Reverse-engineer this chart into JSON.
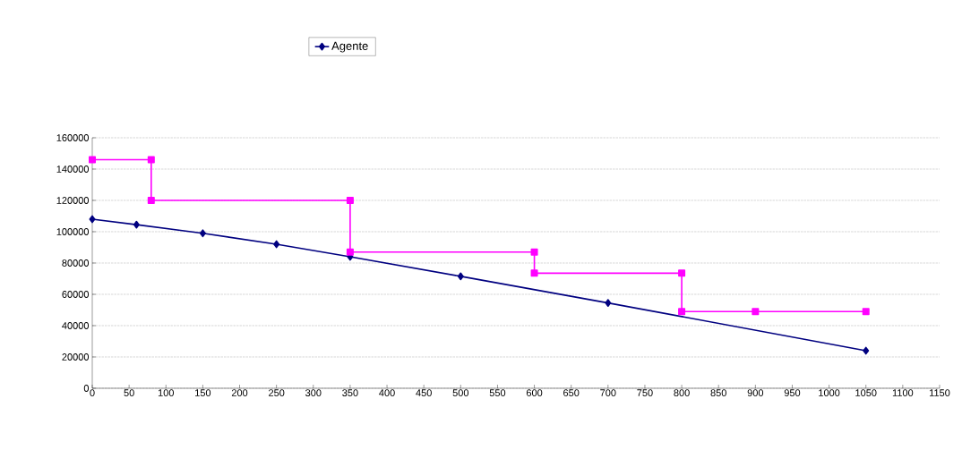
{
  "chart_data": {
    "type": "line",
    "series": [
      {
        "name": "Agente",
        "color": "#000080",
        "marker": "diamond",
        "x": [
          0,
          60,
          150,
          250,
          350,
          500,
          700,
          1050
        ],
        "values": [
          108000,
          104500,
          99000,
          92000,
          84000,
          71500,
          54500,
          24000
        ]
      },
      {
        "color": "#ff00ff",
        "marker": "square",
        "x": [
          0,
          80,
          80,
          350,
          350,
          600,
          600,
          800,
          800,
          900,
          1050
        ],
        "values": [
          146000,
          146000,
          120000,
          120000,
          87000,
          87000,
          73500,
          73500,
          49000,
          49000,
          49000
        ]
      }
    ],
    "xlim": [
      0,
      1150
    ],
    "xticks": [
      0,
      50,
      100,
      150,
      200,
      250,
      300,
      350,
      400,
      450,
      500,
      550,
      600,
      650,
      700,
      750,
      800,
      850,
      900,
      950,
      1000,
      1050,
      1100,
      1150
    ],
    "ylim": [
      0,
      160000
    ],
    "yticks": [
      0,
      20000,
      40000,
      60000,
      80000,
      100000,
      120000,
      140000,
      160000
    ],
    "grid": "y",
    "legend": "top"
  }
}
